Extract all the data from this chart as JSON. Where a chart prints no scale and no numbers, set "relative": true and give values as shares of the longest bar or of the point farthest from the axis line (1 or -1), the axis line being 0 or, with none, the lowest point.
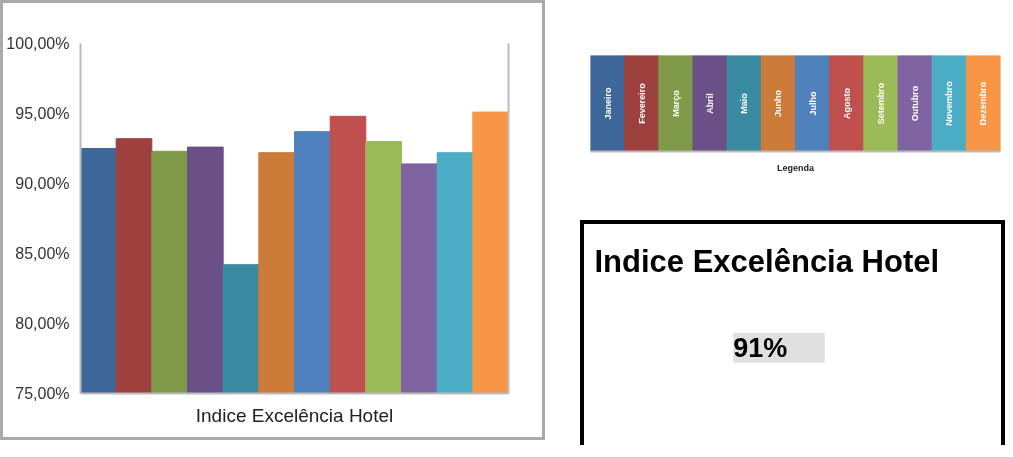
{
  "chart_data": [
    {
      "type": "bar",
      "categories": [
        null,
        null,
        null,
        null,
        null,
        null,
        null,
        null,
        null,
        null,
        null,
        null
      ],
      "values": [
        92.5,
        93.2,
        92.3,
        92.6,
        84.2,
        92.2,
        93.7,
        94.8,
        93.0,
        91.4,
        92.2,
        95.1
      ],
      "colors": [
        "#3d6799",
        "#9e403d",
        "#7f9a48",
        "#6a5087",
        "#3a8ba2",
        "#cc7b38",
        "#4f81bd",
        "#c0504d",
        "#9bbb59",
        "#8064a2",
        "#4bacc6",
        "#f79646"
      ],
      "ylim": [
        75,
        100
      ],
      "yticks": [
        {
          "value": 75,
          "label": "75,00%"
        },
        {
          "value": 80,
          "label": "80,00%"
        },
        {
          "value": 85,
          "label": "85,00%"
        },
        {
          "value": 90,
          "label": "90,00%"
        },
        {
          "value": 95,
          "label": "95,00%"
        },
        {
          "value": 100,
          "label": "100,00%"
        }
      ],
      "xlabel": "Indice Excelência Hotel",
      "tick_labels": "y"
    },
    {
      "type": "bar",
      "relative": true,
      "categories": [
        "Janeiro",
        "Fevereiro",
        "Março",
        "Abril",
        "Maio",
        "Junho",
        "Julho",
        "Agosto",
        "Setembro",
        "Outubro",
        "Novembro",
        "Dezembro"
      ],
      "values": [
        1,
        1,
        1,
        1,
        1,
        1,
        1,
        1,
        1,
        1,
        1,
        1
      ],
      "colors": [
        "#3d6799",
        "#9e403d",
        "#7f9a48",
        "#6a5087",
        "#3a8ba2",
        "#cc7b38",
        "#4f81bd",
        "#c0504d",
        "#9bbb59",
        "#8064a2",
        "#4bacc6",
        "#f79646"
      ],
      "xlabel": "Legenda"
    },
    {
      "type": "other",
      "title": "Indice Excelência Hotel",
      "annotations": [
        "91%"
      ]
    }
  ]
}
